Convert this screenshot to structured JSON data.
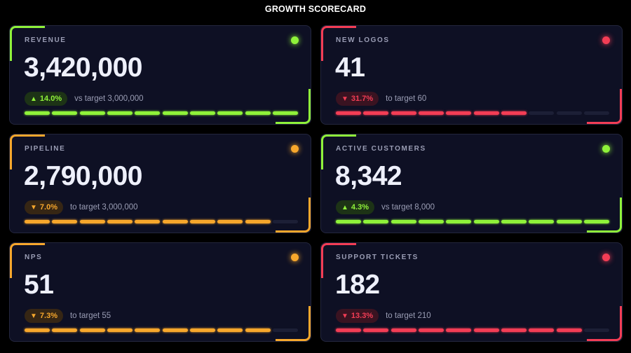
{
  "title": "GROWTH SCORECARD",
  "colors": {
    "green": "#8ff23a",
    "red": "#f33d55",
    "amber": "#f7a72c",
    "card_bg": "#0e1024"
  },
  "cards": [
    {
      "label": "REVENUE",
      "value": "3,420,000",
      "status": "green",
      "direction": "up",
      "arrow": "▲",
      "delta": "14.0%",
      "target_text": "vs target 3,000,000",
      "progress_fraction": 1.0
    },
    {
      "label": "NEW LOGOS",
      "value": "41",
      "status": "red",
      "direction": "down",
      "arrow": "▼",
      "delta": "31.7%",
      "target_text": "to target 60",
      "progress_fraction": 0.7
    },
    {
      "label": "PIPELINE",
      "value": "2,790,000",
      "status": "amber",
      "direction": "down",
      "arrow": "▼",
      "delta": "7.0%",
      "target_text": "to target 3,000,000",
      "progress_fraction": 0.9
    },
    {
      "label": "ACTIVE CUSTOMERS",
      "value": "8,342",
      "status": "green",
      "direction": "up",
      "arrow": "▲",
      "delta": "4.3%",
      "target_text": "vs target 8,000",
      "progress_fraction": 1.0
    },
    {
      "label": "NPS",
      "value": "51",
      "status": "amber",
      "direction": "down",
      "arrow": "▼",
      "delta": "7.3%",
      "target_text": "to target 55",
      "progress_fraction": 0.9
    },
    {
      "label": "SUPPORT TICKETS",
      "value": "182",
      "status": "red",
      "direction": "down",
      "arrow": "▼",
      "delta": "13.3%",
      "target_text": "to target 210",
      "progress_fraction": 0.9
    }
  ]
}
